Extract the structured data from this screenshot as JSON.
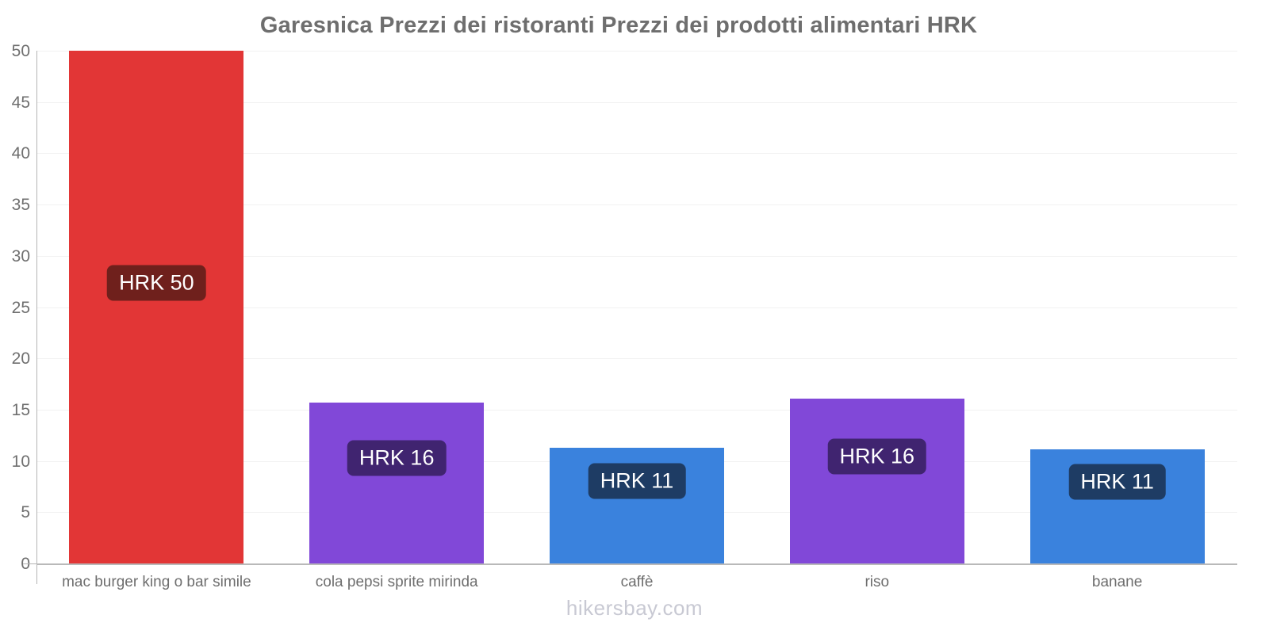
{
  "title": "Garesnica Prezzi dei ristoranti Prezzi dei prodotti alimentari HRK",
  "footer": "hikersbay.com",
  "chart_data": {
    "type": "bar",
    "title": "Garesnica Prezzi dei ristoranti Prezzi dei prodotti alimentari HRK",
    "categories": [
      "mac burger king o bar simile",
      "cola pepsi sprite mirinda",
      "caffè",
      "riso",
      "banane"
    ],
    "values": [
      50,
      15.7,
      11.3,
      16.1,
      11.1
    ],
    "value_labels": [
      "HRK 50",
      "HRK 16",
      "HRK 11",
      "HRK 16",
      "HRK 11"
    ],
    "bar_colors": [
      "#e23636",
      "#8148d8",
      "#3a82dd",
      "#8148d8",
      "#3a82dd"
    ],
    "value_label_bg_colors": [
      "#6f201c",
      "#402470",
      "#1e3c64",
      "#402470",
      "#1e3c64"
    ],
    "xlabel": "",
    "ylabel": "",
    "ylim": [
      0,
      50
    ],
    "yticks": [
      0,
      5,
      10,
      15,
      20,
      25,
      30,
      35,
      40,
      45,
      50
    ],
    "grid": true,
    "legend": false,
    "currency": "HRK",
    "watermark": "hikersbay.com"
  }
}
